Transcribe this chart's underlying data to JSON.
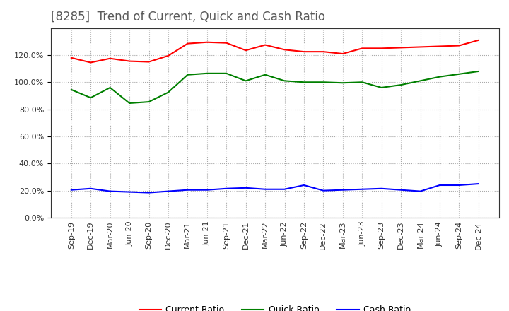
{
  "title": "[8285]  Trend of Current, Quick and Cash Ratio",
  "x_labels": [
    "Sep-19",
    "Dec-19",
    "Mar-20",
    "Jun-20",
    "Sep-20",
    "Dec-20",
    "Mar-21",
    "Jun-21",
    "Sep-21",
    "Dec-21",
    "Mar-22",
    "Jun-22",
    "Sep-22",
    "Dec-22",
    "Mar-23",
    "Jun-23",
    "Sep-23",
    "Dec-23",
    "Mar-24",
    "Jun-24",
    "Sep-24",
    "Dec-24"
  ],
  "current_ratio": [
    1.18,
    1.145,
    1.175,
    1.155,
    1.15,
    1.195,
    1.285,
    1.295,
    1.29,
    1.235,
    1.275,
    1.24,
    1.225,
    1.225,
    1.21,
    1.25,
    1.25,
    1.255,
    1.26,
    1.265,
    1.27,
    1.31
  ],
  "quick_ratio": [
    0.945,
    0.885,
    0.96,
    0.845,
    0.855,
    0.925,
    1.055,
    1.065,
    1.065,
    1.01,
    1.055,
    1.01,
    1.0,
    1.0,
    0.995,
    1.0,
    0.96,
    0.98,
    1.01,
    1.04,
    1.06,
    1.08
  ],
  "cash_ratio": [
    0.205,
    0.215,
    0.195,
    0.19,
    0.185,
    0.195,
    0.205,
    0.205,
    0.215,
    0.22,
    0.21,
    0.21,
    0.24,
    0.2,
    0.205,
    0.21,
    0.215,
    0.205,
    0.195,
    0.24,
    0.24,
    0.25
  ],
  "current_color": "#FF0000",
  "quick_color": "#008000",
  "cash_color": "#0000FF",
  "ylim": [
    0.0,
    1.4
  ],
  "yticks": [
    0.0,
    0.2,
    0.4,
    0.6,
    0.8,
    1.0,
    1.2
  ],
  "background_color": "#ffffff",
  "grid_color": "#aaaaaa",
  "title_color": "#595959",
  "title_fontsize": 12,
  "tick_fontsize": 8,
  "legend_fontsize": 9
}
